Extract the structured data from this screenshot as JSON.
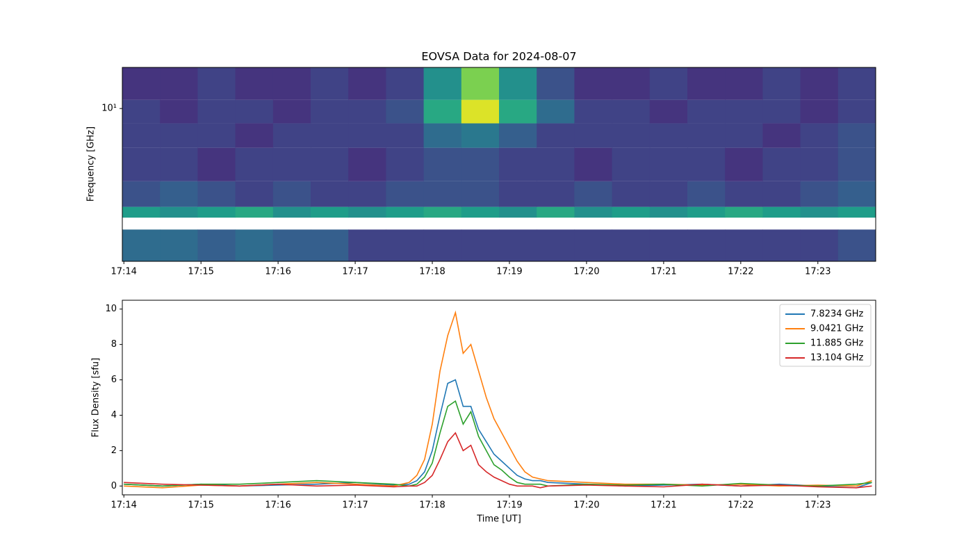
{
  "chart_data": [
    {
      "type": "heatmap",
      "title": "EOVSA Data for 2024-08-07",
      "ylabel": "Frequency [GHz]",
      "colormap": "viridis",
      "zlim": [
        0,
        1
      ],
      "x_edges": [
        1033.98,
        1034.4685,
        1034.957,
        1035.4455,
        1035.934,
        1036.4225,
        1036.911,
        1037.3995,
        1037.888,
        1038.3765,
        1038.865,
        1039.3535,
        1039.842,
        1040.3305,
        1040.819,
        1041.3075,
        1041.796,
        1042.2845,
        1042.773,
        1043.2615,
        1043.75
      ],
      "y_edges": [
        1.87,
        2.65,
        3.02,
        3.4,
        4.5,
        6.5,
        8.5,
        11,
        15.7
      ],
      "z": [
        [
          0.35,
          0.35,
          0.3,
          0.35,
          0.3,
          0.3,
          0.2,
          0.2,
          0.2,
          0.2,
          0.2,
          0.2,
          0.2,
          0.2,
          0.2,
          0.2,
          0.2,
          0.2,
          0.2,
          0.25
        ],
        [
          null,
          null,
          null,
          null,
          null,
          null,
          null,
          null,
          null,
          null,
          null,
          null,
          null,
          null,
          null,
          null,
          null,
          null,
          null,
          null
        ],
        [
          0.55,
          0.5,
          0.55,
          0.6,
          0.5,
          0.55,
          0.5,
          0.55,
          0.6,
          0.55,
          0.5,
          0.6,
          0.5,
          0.55,
          0.5,
          0.55,
          0.6,
          0.55,
          0.5,
          0.55
        ],
        [
          0.25,
          0.3,
          0.25,
          0.2,
          0.25,
          0.2,
          0.2,
          0.25,
          0.25,
          0.25,
          0.2,
          0.2,
          0.25,
          0.2,
          0.2,
          0.25,
          0.2,
          0.2,
          0.25,
          0.3
        ],
        [
          0.2,
          0.2,
          0.15,
          0.2,
          0.2,
          0.2,
          0.15,
          0.2,
          0.25,
          0.25,
          0.2,
          0.2,
          0.15,
          0.2,
          0.2,
          0.2,
          0.15,
          0.2,
          0.2,
          0.25
        ],
        [
          0.2,
          0.2,
          0.2,
          0.15,
          0.2,
          0.2,
          0.2,
          0.2,
          0.35,
          0.4,
          0.3,
          0.2,
          0.2,
          0.2,
          0.2,
          0.2,
          0.2,
          0.15,
          0.2,
          0.25
        ],
        [
          0.2,
          0.15,
          0.2,
          0.2,
          0.15,
          0.2,
          0.2,
          0.25,
          0.6,
          0.95,
          0.6,
          0.35,
          0.2,
          0.2,
          0.15,
          0.2,
          0.2,
          0.2,
          0.15,
          0.2
        ],
        [
          0.15,
          0.15,
          0.2,
          0.15,
          0.15,
          0.2,
          0.15,
          0.2,
          0.5,
          0.8,
          0.5,
          0.25,
          0.15,
          0.15,
          0.2,
          0.15,
          0.15,
          0.2,
          0.15,
          0.2
        ]
      ],
      "xlim": [
        1033.98,
        1043.75
      ],
      "xticks": [
        {
          "value": 1034,
          "label": "17:14"
        },
        {
          "value": 1035,
          "label": "17:15"
        },
        {
          "value": 1036,
          "label": "17:16"
        },
        {
          "value": 1037,
          "label": "17:17"
        },
        {
          "value": 1038,
          "label": "17:18"
        },
        {
          "value": 1039,
          "label": "17:19"
        },
        {
          "value": 1040,
          "label": "17:20"
        },
        {
          "value": 1041,
          "label": "17:21"
        },
        {
          "value": 1042,
          "label": "17:22"
        },
        {
          "value": 1043,
          "label": "17:23"
        }
      ],
      "ylim": [
        1.87,
        15.7
      ],
      "yscale": "log",
      "yticks": [
        {
          "value": 10,
          "label": "10¹"
        }
      ],
      "yminorticks": [
        2,
        3,
        4,
        5,
        6,
        7,
        8,
        9
      ]
    },
    {
      "type": "line",
      "xlabel": "Time [UT]",
      "ylabel": "Flux Density [sfu]",
      "legend": "upper right",
      "x": [
        1034,
        1034.5,
        1035,
        1035.5,
        1036,
        1036.5,
        1037,
        1037.5,
        1037.7,
        1037.8,
        1037.9,
        1038.0,
        1038.1,
        1038.2,
        1038.3,
        1038.4,
        1038.5,
        1038.6,
        1038.7,
        1038.8,
        1038.9,
        1039.0,
        1039.1,
        1039.2,
        1039.3,
        1039.4,
        1039.5,
        1040,
        1040.5,
        1041,
        1041.5,
        1042,
        1042.5,
        1043,
        1043.5,
        1043.7
      ],
      "series": [
        {
          "name": "7.8234 GHz",
          "color": "#1f77b4",
          "values": [
            0.1,
            0.0,
            0.1,
            0.0,
            0.05,
            0.1,
            0.2,
            0.05,
            0.1,
            0.3,
            0.8,
            2.0,
            4.0,
            5.8,
            6.0,
            4.5,
            4.5,
            3.2,
            2.5,
            1.8,
            1.4,
            1.0,
            0.6,
            0.4,
            0.3,
            0.3,
            0.2,
            0.1,
            0.0,
            0.05,
            0.1,
            0.0,
            0.1,
            0.0,
            -0.1,
            0.2
          ]
        },
        {
          "name": "9.0421 GHz",
          "color": "#ff7f0e",
          "values": [
            0.0,
            -0.1,
            0.05,
            0.0,
            0.1,
            0.2,
            0.1,
            0.0,
            0.2,
            0.6,
            1.5,
            3.5,
            6.5,
            8.5,
            9.8,
            7.5,
            8.0,
            6.5,
            5.0,
            3.8,
            3.0,
            2.2,
            1.4,
            0.8,
            0.5,
            0.4,
            0.3,
            0.2,
            0.1,
            0.1,
            0.05,
            0.1,
            0.0,
            0.05,
            0.0,
            0.3
          ]
        },
        {
          "name": "11.885 GHz",
          "color": "#2ca02c",
          "values": [
            0.1,
            0.0,
            0.1,
            0.1,
            0.2,
            0.3,
            0.2,
            0.1,
            0.0,
            0.1,
            0.5,
            1.3,
            3.0,
            4.5,
            4.8,
            3.5,
            4.2,
            2.8,
            2.0,
            1.2,
            0.9,
            0.5,
            0.2,
            0.1,
            0.1,
            0.1,
            0.0,
            0.1,
            0.05,
            0.1,
            0.0,
            0.15,
            0.05,
            0.0,
            0.1,
            0.2
          ]
        },
        {
          "name": "13.104 GHz",
          "color": "#d62728",
          "values": [
            0.2,
            0.1,
            0.05,
            0.0,
            0.1,
            0.0,
            0.05,
            -0.05,
            0.0,
            0.0,
            0.2,
            0.6,
            1.5,
            2.5,
            3.0,
            2.0,
            2.3,
            1.2,
            0.8,
            0.5,
            0.3,
            0.1,
            0.0,
            0.0,
            0.0,
            -0.1,
            0.0,
            0.05,
            0.0,
            -0.05,
            0.1,
            0.0,
            0.05,
            -0.05,
            -0.1,
            0.0
          ]
        }
      ],
      "xlim": [
        1033.98,
        1043.75
      ],
      "xticks": [
        {
          "value": 1034,
          "label": "17:14"
        },
        {
          "value": 1035,
          "label": "17:15"
        },
        {
          "value": 1036,
          "label": "17:16"
        },
        {
          "value": 1037,
          "label": "17:17"
        },
        {
          "value": 1038,
          "label": "17:18"
        },
        {
          "value": 1039,
          "label": "17:19"
        },
        {
          "value": 1040,
          "label": "17:20"
        },
        {
          "value": 1041,
          "label": "17:21"
        },
        {
          "value": 1042,
          "label": "17:22"
        },
        {
          "value": 1043,
          "label": "17:23"
        }
      ],
      "ylim": [
        -0.5,
        10.5
      ],
      "yticks": [
        0,
        2,
        4,
        6,
        8,
        10
      ]
    }
  ]
}
